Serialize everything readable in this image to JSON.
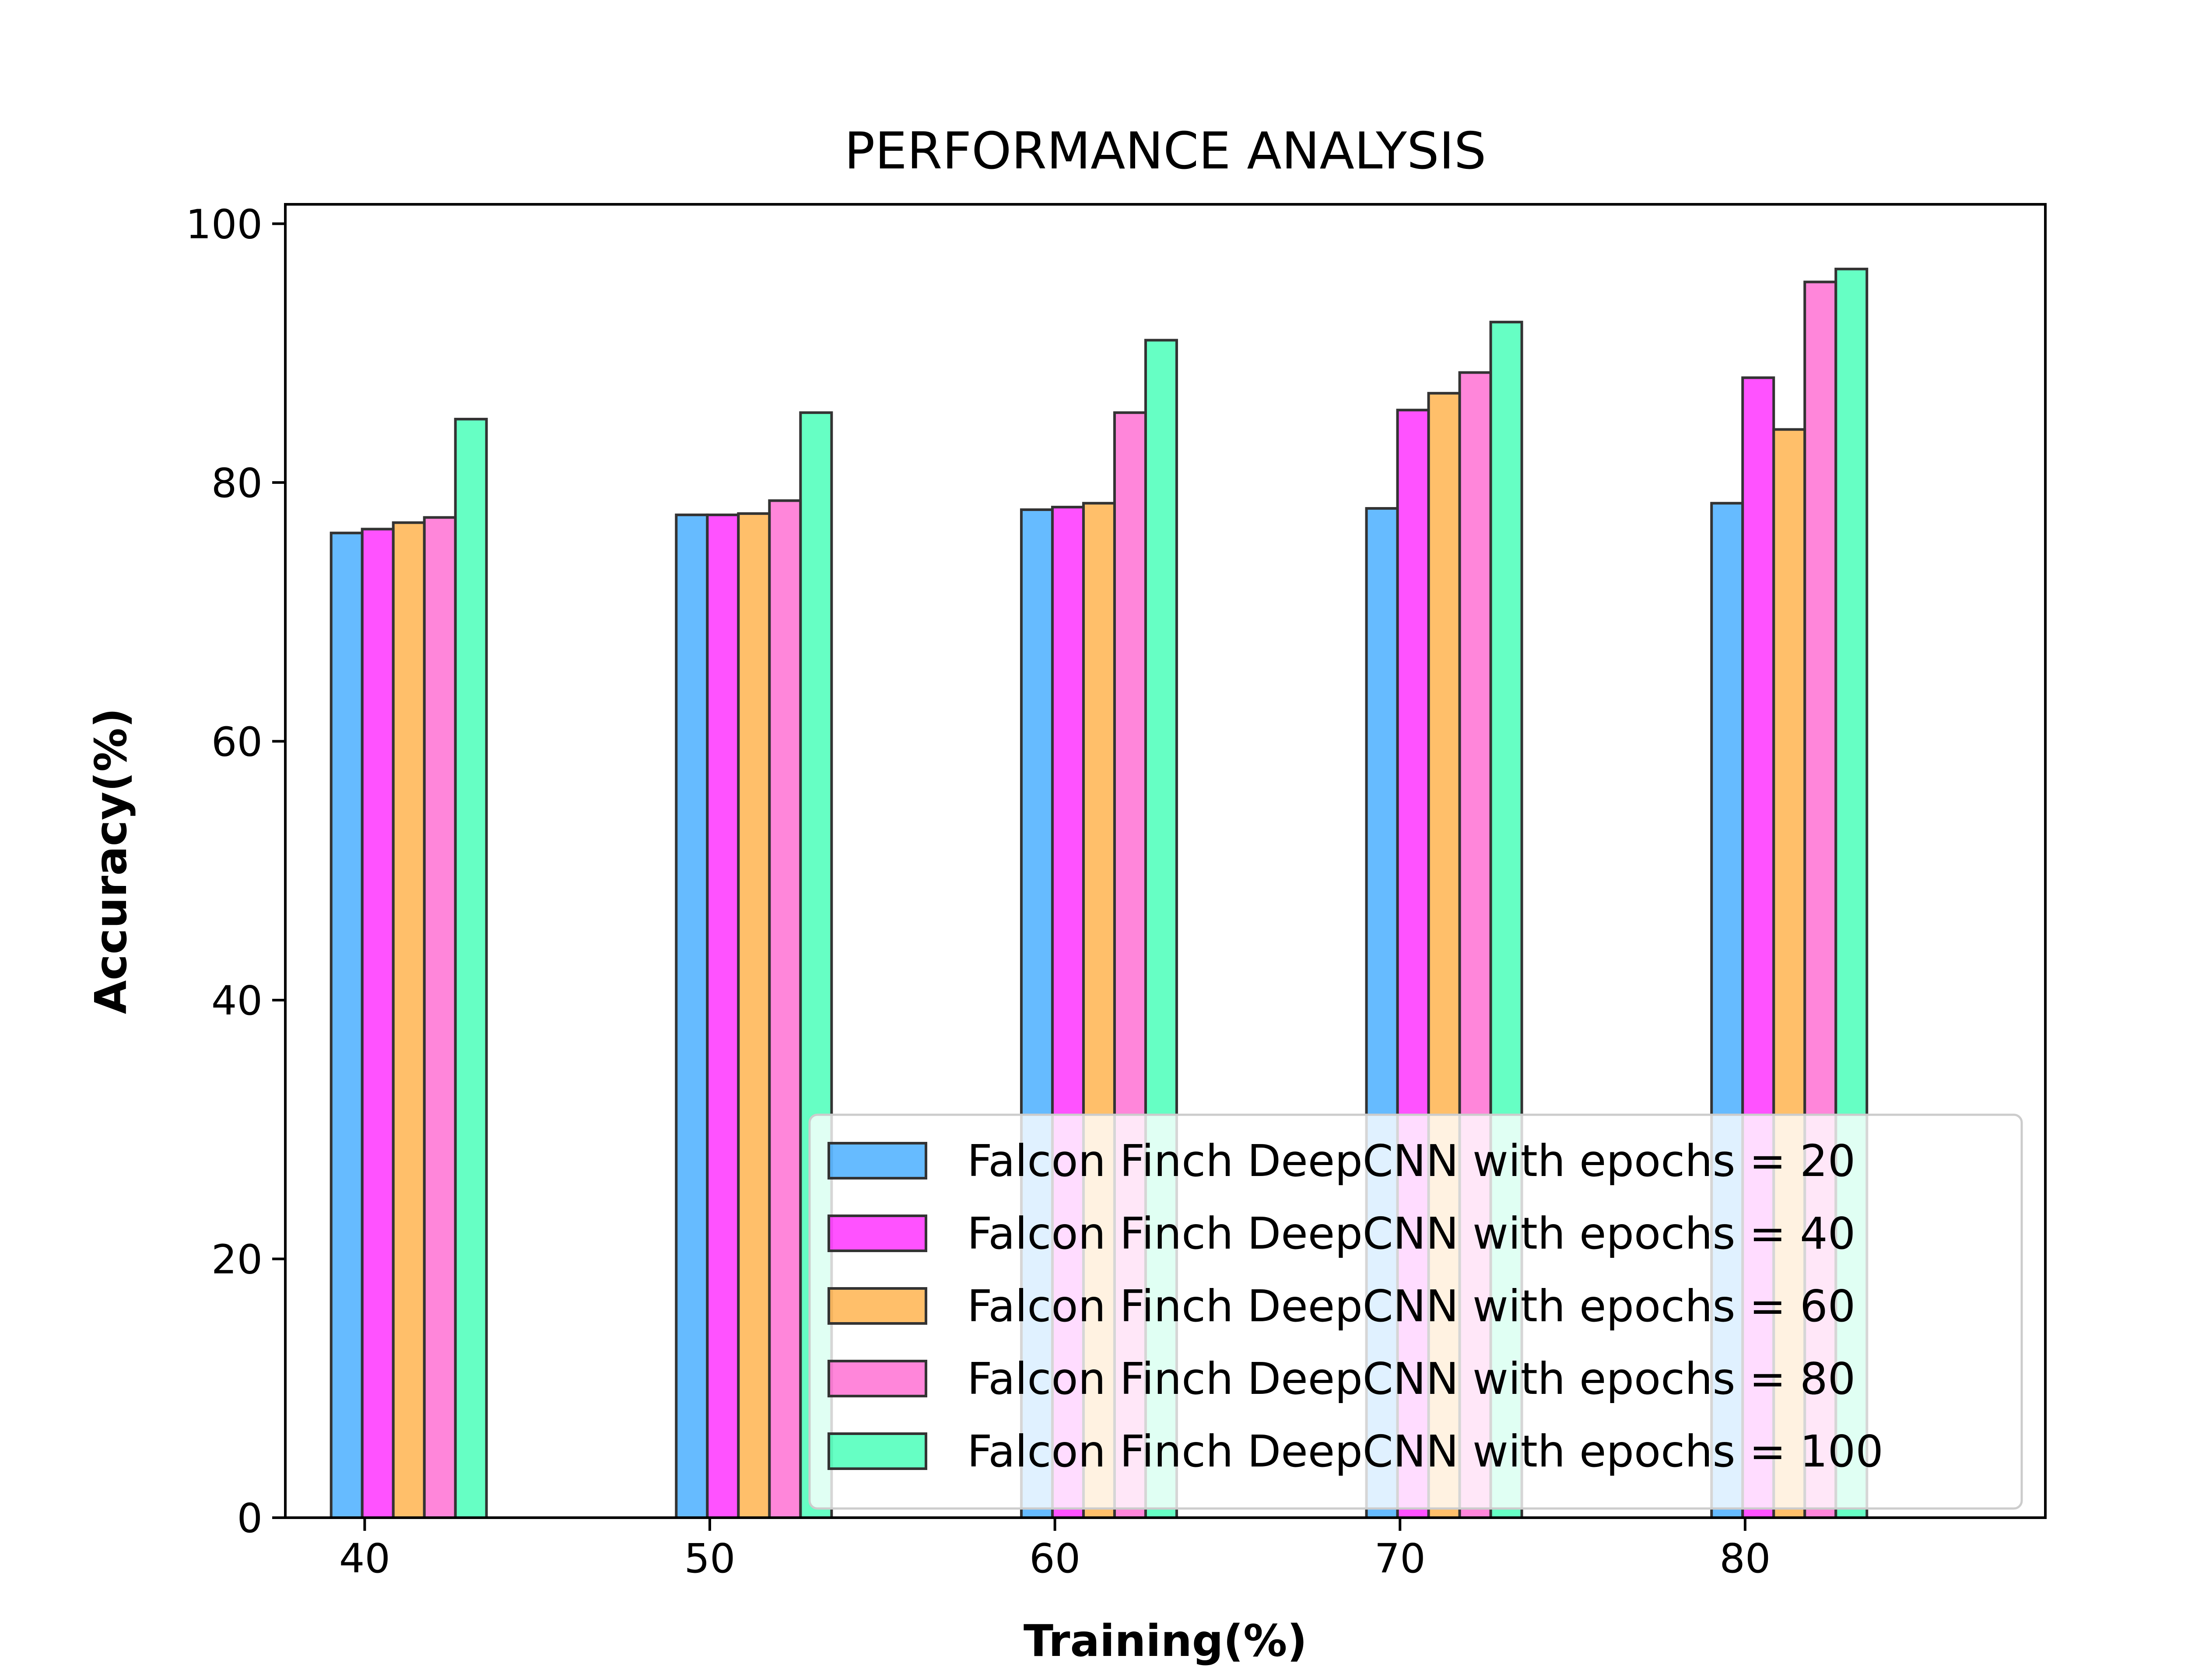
{
  "chart_data": {
    "type": "bar",
    "title": "PERFORMANCE ANALYSIS",
    "xlabel": "Training(%)",
    "ylabel": "Accuracy(%)",
    "categories": [
      "40",
      "50",
      "60",
      "70",
      "80"
    ],
    "x_ticks": [
      "40",
      "50",
      "60",
      "70",
      "80"
    ],
    "y_ticks": [
      "0",
      "20",
      "40",
      "60",
      "80",
      "100"
    ],
    "ylim": [
      0,
      101.5
    ],
    "grid": false,
    "legend_position": "bottom-right",
    "series": [
      {
        "name": "Falcon Finch DeepCNN with epochs = 20",
        "color": "#1E9BFF",
        "values": [
          76.1,
          77.5,
          77.9,
          78.0,
          78.4
        ]
      },
      {
        "name": "Falcon Finch DeepCNN with epochs = 40",
        "color": "#FF00FF",
        "values": [
          76.4,
          77.5,
          78.1,
          85.6,
          88.1
        ]
      },
      {
        "name": "Falcon Finch DeepCNN with epochs = 60",
        "color": "#FFA024",
        "values": [
          76.9,
          77.6,
          78.4,
          86.9,
          84.1
        ]
      },
      {
        "name": "Falcon Finch DeepCNN with epochs = 80",
        "color": "#FF4DC8",
        "values": [
          77.3,
          78.6,
          85.4,
          88.5,
          95.5
        ]
      },
      {
        "name": "Falcon Finch DeepCNN with epochs = 100",
        "color": "#1EFFA8",
        "values": [
          84.9,
          85.4,
          91.0,
          92.4,
          96.5
        ]
      }
    ]
  }
}
